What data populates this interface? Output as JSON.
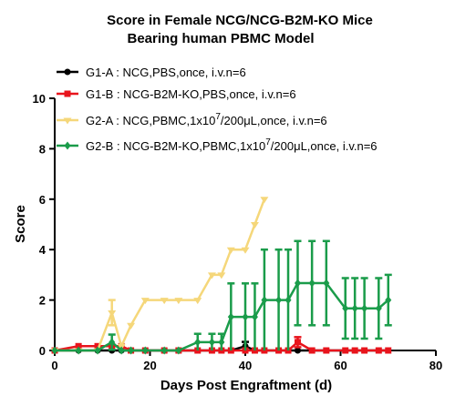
{
  "chart_data": {
    "type": "line",
    "title": [
      "Score in Female NCG/NCG-B2M-KO  Mice",
      "Bearing human PBMC  Model"
    ],
    "xlabel": "Days Post Engraftment (d)",
    "ylabel": "Score",
    "xlim": [
      0,
      80
    ],
    "ylim": [
      0,
      10
    ],
    "xticks": [
      0,
      20,
      40,
      60,
      80
    ],
    "yticks": [
      0,
      2,
      4,
      6,
      8,
      10
    ],
    "xtick_labels": [
      "0",
      "20",
      "40",
      "60",
      "80"
    ],
    "ytick_labels": [
      "0",
      "2",
      "4",
      "6",
      "8",
      "10"
    ],
    "legend_position": "top-left",
    "series": [
      {
        "name": "G1-A : NCG,PBS,once, i.v.n=6",
        "legend": {
          "prefix": "G1-A : NCG,PBS,once, i.v.n=6"
        },
        "color": "#000000",
        "marker": "circle",
        "x": [
          0,
          5,
          9,
          12,
          14,
          16,
          19,
          23,
          26,
          30,
          33,
          35,
          37,
          40,
          42,
          44,
          47,
          49,
          51,
          54,
          57,
          61,
          63,
          65,
          68,
          70
        ],
        "y": [
          0,
          0,
          0,
          0,
          0,
          0,
          0,
          0,
          0,
          0,
          0,
          0,
          0,
          0.17,
          0,
          0,
          0,
          0,
          0,
          0,
          0,
          0,
          0,
          0,
          0,
          0
        ],
        "err": [
          0,
          0,
          0,
          0,
          0,
          0,
          0,
          0,
          0,
          0,
          0,
          0,
          0,
          0.17,
          0,
          0,
          0,
          0,
          0,
          0,
          0,
          0,
          0,
          0,
          0,
          0
        ]
      },
      {
        "name": "G1-B : NCG-B2M-KO,PBS,once, i.v.n=6",
        "legend": {
          "prefix": "G1-B : NCG-B2M-KO,PBS,once, i.v.n=6"
        },
        "color": "#e8141c",
        "marker": "square",
        "x": [
          0,
          5,
          9,
          12,
          14,
          16,
          19,
          23,
          26,
          30,
          33,
          35,
          37,
          40,
          42,
          44,
          47,
          49,
          51,
          54,
          57,
          61,
          63,
          65,
          68,
          70
        ],
        "y": [
          0,
          0.17,
          0.17,
          0.17,
          0.17,
          0,
          0,
          0,
          0,
          0,
          0,
          0,
          0,
          0,
          0,
          0,
          0,
          0,
          0.33,
          0,
          0,
          0,
          0,
          0,
          0,
          0
        ],
        "err": [
          0,
          0,
          0,
          0,
          0,
          0,
          0,
          0,
          0,
          0,
          0,
          0,
          0,
          0,
          0,
          0,
          0,
          0,
          0.2,
          0,
          0,
          0,
          0,
          0,
          0,
          0
        ]
      },
      {
        "name": "G2-A : NCG,PBMC,1x10^7/200μL,once, i.v.n=6",
        "legend": {
          "prefix": "G2-A : NCG,PBMC,1x10",
          "sup": "7",
          "suffix": "/200μL,once, i.v.n=6"
        },
        "color": "#f5d77a",
        "marker": "triangle-down",
        "x": [
          0,
          5,
          9,
          12,
          14,
          16,
          19,
          23,
          26,
          30,
          33,
          35,
          37,
          40,
          42,
          44
        ],
        "y": [
          0,
          0,
          0,
          1.5,
          0.17,
          1.0,
          2.0,
          2.0,
          2.0,
          2.0,
          3.0,
          3.0,
          4.0,
          4.0,
          5.0,
          6.0
        ],
        "err": [
          0,
          0,
          0,
          0.5,
          0,
          0,
          0,
          0,
          0,
          0,
          0,
          0,
          0,
          0,
          0,
          0
        ]
      },
      {
        "name": "G2-B : NCG-B2M-KO,PBMC,1x10^7/200μL,once, i.v.n=6",
        "legend": {
          "prefix": "G2-B : NCG-B2M-KO,PBMC,1x10",
          "sup": "7",
          "suffix": "/200μL,once, i.v.n=6"
        },
        "color": "#1a9c4a",
        "marker": "diamond",
        "x": [
          0,
          5,
          9,
          12,
          14,
          16,
          19,
          23,
          26,
          30,
          33,
          35,
          37,
          40,
          42,
          44,
          47,
          49,
          51,
          54,
          57,
          61,
          63,
          65,
          68,
          70
        ],
        "y": [
          0,
          0,
          0,
          0.33,
          0,
          0,
          0,
          0,
          0,
          0.33,
          0.33,
          0.33,
          1.33,
          1.33,
          1.33,
          2.0,
          2.0,
          2.0,
          2.67,
          2.67,
          2.67,
          1.67,
          1.67,
          1.67,
          1.67,
          2.0
        ],
        "err": [
          0,
          0,
          0,
          0.3,
          0,
          0,
          0,
          0,
          0,
          0.33,
          0.33,
          0.33,
          1.33,
          1.33,
          1.33,
          2.0,
          2.0,
          2.0,
          1.67,
          1.67,
          1.67,
          1.2,
          1.2,
          1.2,
          1.2,
          1.0
        ]
      }
    ]
  }
}
